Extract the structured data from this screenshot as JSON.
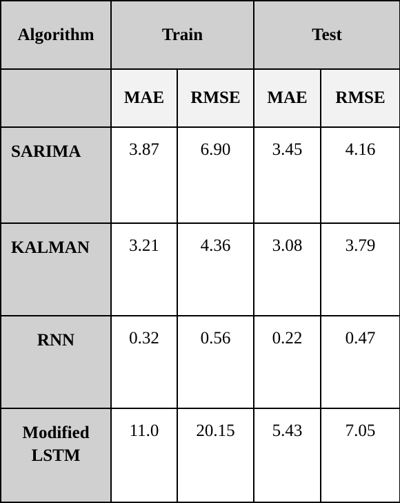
{
  "header": {
    "algorithm_label": "Algorithm",
    "train_label": "Train",
    "test_label": "Test",
    "metrics": [
      "MAE",
      "RMSE",
      "MAE",
      "RMSE"
    ]
  },
  "rows": [
    {
      "algorithm": "SARIMA",
      "values": [
        "3.87",
        "6.90",
        "3.45",
        "4.16"
      ]
    },
    {
      "algorithm": "KALMAN",
      "values": [
        "3.21",
        "4.36",
        "3.08",
        "3.79"
      ]
    },
    {
      "algorithm": "RNN",
      "values": [
        "0.32",
        "0.56",
        "0.22",
        "0.47"
      ]
    },
    {
      "algorithm_line1": "Modified",
      "algorithm_line2": "LSTM",
      "values": [
        "11.0",
        "20.15",
        "5.43",
        "7.05"
      ]
    }
  ],
  "colors": {
    "header_gray": "#d0d0d0",
    "metric_light": "#f2f2f2",
    "border": "#000000"
  }
}
